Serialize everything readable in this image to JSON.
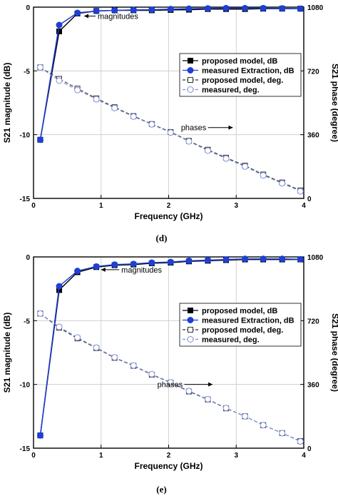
{
  "chart_data": [
    {
      "type": "line",
      "panel_label": "(d)",
      "xlabel": "Frequency  (GHz)",
      "ylabel_left": "S21 magnitude  (dB)",
      "ylabel_right": "S21 phase  (degree)",
      "xlim": [
        0,
        4
      ],
      "ylim_left": [
        -15,
        0
      ],
      "ylim_right": [
        0,
        1080
      ],
      "xticks": [
        "0",
        "1",
        "2",
        "3",
        "4"
      ],
      "yticks_left": [
        "0",
        "-5",
        "-10",
        "-15"
      ],
      "yticks_right": [
        "1080",
        "720",
        "360",
        "0"
      ],
      "grid": true,
      "legend_position": "right-upper",
      "annotations": [
        {
          "text": "magnitudes",
          "x": 0.95,
          "y": -0.7,
          "arrow_to": [
            0.75,
            -0.7
          ]
        },
        {
          "text": "phases",
          "x": 2.55,
          "y": 400,
          "arrow_to": [
            2.95,
            400
          ]
        }
      ],
      "x": [
        0.1,
        0.38,
        0.65,
        0.93,
        1.2,
        1.48,
        1.75,
        2.03,
        2.3,
        2.58,
        2.85,
        3.13,
        3.4,
        3.68,
        3.95
      ],
      "series": [
        {
          "name": "proposed model, dB",
          "axis": "left",
          "style": "solid-filled-square",
          "color": "#000000",
          "values": [
            -10.4,
            -1.9,
            -0.5,
            -0.3,
            -0.25,
            -0.25,
            -0.25,
            -0.22,
            -0.2,
            -0.15,
            -0.15,
            -0.15,
            -0.12,
            -0.12,
            -0.12
          ]
        },
        {
          "name": "measured Extraction, dB",
          "axis": "left",
          "style": "solid-filled-circle",
          "color": "#1f3fd6",
          "values": [
            -10.4,
            -1.4,
            -0.45,
            -0.3,
            -0.25,
            -0.22,
            -0.2,
            -0.15,
            -0.12,
            -0.1,
            -0.08,
            -0.08,
            -0.08,
            -0.1,
            -0.12
          ]
        },
        {
          "name": "proposed model, deg.",
          "axis": "right",
          "style": "dashed-open-square",
          "color": "#333333",
          "values": [
            740,
            675,
            620,
            565,
            515,
            465,
            420,
            375,
            325,
            275,
            230,
            185,
            135,
            90,
            45
          ]
        },
        {
          "name": "measured, deg.",
          "axis": "right",
          "style": "dashed-open-circle",
          "color": "#7f8fd6",
          "values": [
            740,
            665,
            612,
            560,
            510,
            462,
            418,
            372,
            322,
            270,
            225,
            180,
            130,
            85,
            40
          ]
        }
      ]
    },
    {
      "type": "line",
      "panel_label": "(e)",
      "xlabel": "Frequency  (GHz)",
      "ylabel_left": "S21 magnitude  (dB)",
      "ylabel_right": "S21 phase  (degree)",
      "xlim": [
        0,
        4
      ],
      "ylim_left": [
        -15,
        0
      ],
      "ylim_right": [
        0,
        1080
      ],
      "xticks": [
        "0",
        "1",
        "2",
        "3",
        "4"
      ],
      "yticks_left": [
        "0",
        "-5",
        "-10",
        "-15"
      ],
      "yticks_right": [
        "1080",
        "720",
        "360",
        "0"
      ],
      "grid": true,
      "legend_position": "right-upper",
      "annotations": [
        {
          "text": "magnitudes",
          "x": 1.3,
          "y": -1.0,
          "arrow_to": [
            1.0,
            -1.0
          ]
        },
        {
          "text": "phases",
          "x": 2.2,
          "y": 360,
          "arrow_to": [
            2.65,
            360
          ]
        }
      ],
      "x": [
        0.1,
        0.38,
        0.65,
        0.93,
        1.2,
        1.48,
        1.75,
        2.03,
        2.3,
        2.58,
        2.85,
        3.13,
        3.4,
        3.68,
        3.95
      ],
      "series": [
        {
          "name": "proposed model, dB",
          "axis": "left",
          "style": "solid-filled-square",
          "color": "#000000",
          "values": [
            -14.0,
            -2.6,
            -1.2,
            -0.8,
            -0.65,
            -0.6,
            -0.5,
            -0.45,
            -0.35,
            -0.3,
            -0.25,
            -0.2,
            -0.2,
            -0.2,
            -0.2
          ]
        },
        {
          "name": "measured Extraction, dB",
          "axis": "left",
          "style": "solid-filled-circle",
          "color": "#1f3fd6",
          "values": [
            -14.0,
            -2.3,
            -1.1,
            -0.75,
            -0.6,
            -0.55,
            -0.45,
            -0.4,
            -0.3,
            -0.25,
            -0.2,
            -0.15,
            -0.15,
            -0.15,
            -0.18
          ]
        },
        {
          "name": "proposed model, deg.",
          "axis": "right",
          "style": "dashed-open-square",
          "color": "#333333",
          "values": [
            760,
            680,
            620,
            565,
            510,
            465,
            415,
            370,
            320,
            275,
            225,
            180,
            130,
            85,
            40
          ]
        },
        {
          "name": "measured, deg.",
          "axis": "right",
          "style": "dashed-open-circle",
          "color": "#7f8fd6",
          "values": [
            760,
            685,
            625,
            568,
            513,
            467,
            418,
            372,
            323,
            277,
            227,
            180,
            130,
            85,
            38
          ]
        }
      ]
    }
  ]
}
